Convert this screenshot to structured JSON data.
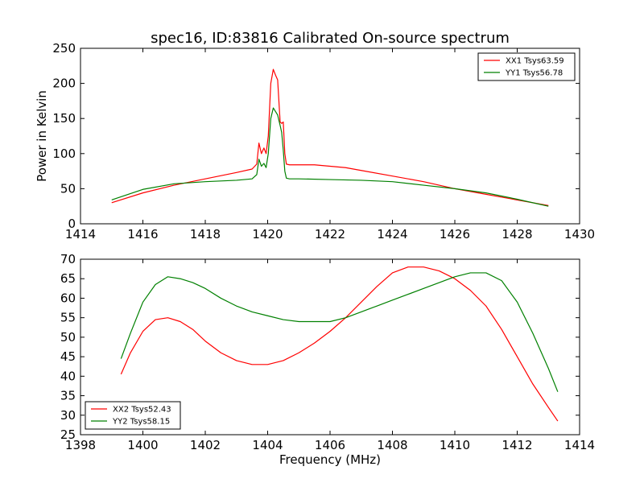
{
  "chart_data": [
    {
      "type": "line",
      "title": "spec16, ID:83816 Calibrated On-source spectrum",
      "xlabel": "",
      "ylabel": "Power in Kelvin",
      "xlim": [
        1414,
        1430
      ],
      "ylim": [
        0,
        250
      ],
      "xticks": [
        "1414",
        "1416",
        "1418",
        "1420",
        "1422",
        "1424",
        "1426",
        "1428",
        "1430"
      ],
      "yticks": [
        "0",
        "50",
        "100",
        "150",
        "200",
        "250"
      ],
      "grid": false,
      "legend": "top-right",
      "series": [
        {
          "name": "XX1 Tsys63.59",
          "color": "#ff0000",
          "x": [
            1415.0,
            1416.0,
            1417.0,
            1418.0,
            1419.0,
            1419.5,
            1419.65,
            1419.72,
            1419.8,
            1419.88,
            1419.95,
            1420.02,
            1420.1,
            1420.18,
            1420.25,
            1420.32,
            1420.4,
            1420.45,
            1420.5,
            1420.55,
            1420.6,
            1420.7,
            1421.0,
            1421.5,
            1422.0,
            1422.5,
            1423.0,
            1424.0,
            1425.0,
            1426.0,
            1427.0,
            1428.0,
            1429.0
          ],
          "y": [
            30,
            44,
            55,
            64,
            73,
            78,
            85,
            115,
            100,
            108,
            100,
            125,
            200,
            220,
            212,
            205,
            145,
            143,
            145,
            100,
            85,
            84,
            84,
            84,
            82,
            80,
            76,
            68,
            60,
            50,
            42,
            34,
            26
          ]
        },
        {
          "name": "YY1 Tsys56.78",
          "color": "#008000",
          "x": [
            1415.0,
            1416.0,
            1417.0,
            1418.0,
            1419.0,
            1419.5,
            1419.65,
            1419.72,
            1419.8,
            1419.88,
            1419.95,
            1420.02,
            1420.1,
            1420.18,
            1420.25,
            1420.32,
            1420.4,
            1420.45,
            1420.5,
            1420.55,
            1420.6,
            1420.7,
            1421.0,
            1422.0,
            1423.0,
            1424.0,
            1425.0,
            1426.0,
            1427.0,
            1428.0,
            1429.0
          ],
          "y": [
            34,
            49,
            57,
            60,
            62,
            64,
            70,
            92,
            82,
            86,
            80,
            100,
            150,
            165,
            160,
            155,
            140,
            130,
            105,
            75,
            65,
            64,
            64,
            63,
            62,
            60,
            55,
            50,
            44,
            35,
            25
          ]
        }
      ]
    },
    {
      "type": "line",
      "title": "",
      "xlabel": "Frequency (MHz)",
      "ylabel": "",
      "xlim": [
        1398,
        1414
      ],
      "ylim": [
        25,
        70
      ],
      "xticks": [
        "1398",
        "1400",
        "1402",
        "1404",
        "1406",
        "1408",
        "1410",
        "1412",
        "1414"
      ],
      "yticks": [
        "25",
        "30",
        "35",
        "40",
        "45",
        "50",
        "55",
        "60",
        "65",
        "70"
      ],
      "grid": false,
      "legend": "bottom-left",
      "series": [
        {
          "name": "XX2 Tsys52.43",
          "color": "#ff0000",
          "x": [
            1399.3,
            1399.6,
            1400.0,
            1400.4,
            1400.8,
            1401.2,
            1401.6,
            1402.0,
            1402.5,
            1403.0,
            1403.5,
            1404.0,
            1404.5,
            1405.0,
            1405.5,
            1406.0,
            1406.5,
            1407.0,
            1407.5,
            1408.0,
            1408.5,
            1409.0,
            1409.5,
            1410.0,
            1410.5,
            1411.0,
            1411.5,
            1412.0,
            1412.5,
            1413.0,
            1413.3
          ],
          "y": [
            40.5,
            46,
            51.5,
            54.5,
            55,
            54,
            52,
            49,
            46,
            44,
            43,
            43,
            44,
            46,
            48.5,
            51.5,
            55,
            59,
            63,
            66.5,
            68,
            68,
            67,
            65,
            62,
            58,
            52,
            45,
            38,
            32,
            28.5
          ]
        },
        {
          "name": "YY2 Tsys58.15",
          "color": "#008000",
          "x": [
            1399.3,
            1399.6,
            1400.0,
            1400.4,
            1400.8,
            1401.2,
            1401.6,
            1402.0,
            1402.5,
            1403.0,
            1403.5,
            1404.0,
            1404.5,
            1405.0,
            1405.5,
            1406.0,
            1406.5,
            1407.0,
            1407.5,
            1408.0,
            1408.5,
            1409.0,
            1409.5,
            1410.0,
            1410.5,
            1411.0,
            1411.5,
            1412.0,
            1412.5,
            1413.0,
            1413.3
          ],
          "y": [
            44.5,
            51,
            59,
            63.5,
            65.5,
            65,
            64,
            62.5,
            60,
            58,
            56.5,
            55.5,
            54.5,
            54,
            54,
            54,
            55,
            56.5,
            58,
            59.5,
            61,
            62.5,
            64,
            65.5,
            66.5,
            66.5,
            64.5,
            59,
            51,
            42,
            36
          ]
        }
      ]
    }
  ]
}
